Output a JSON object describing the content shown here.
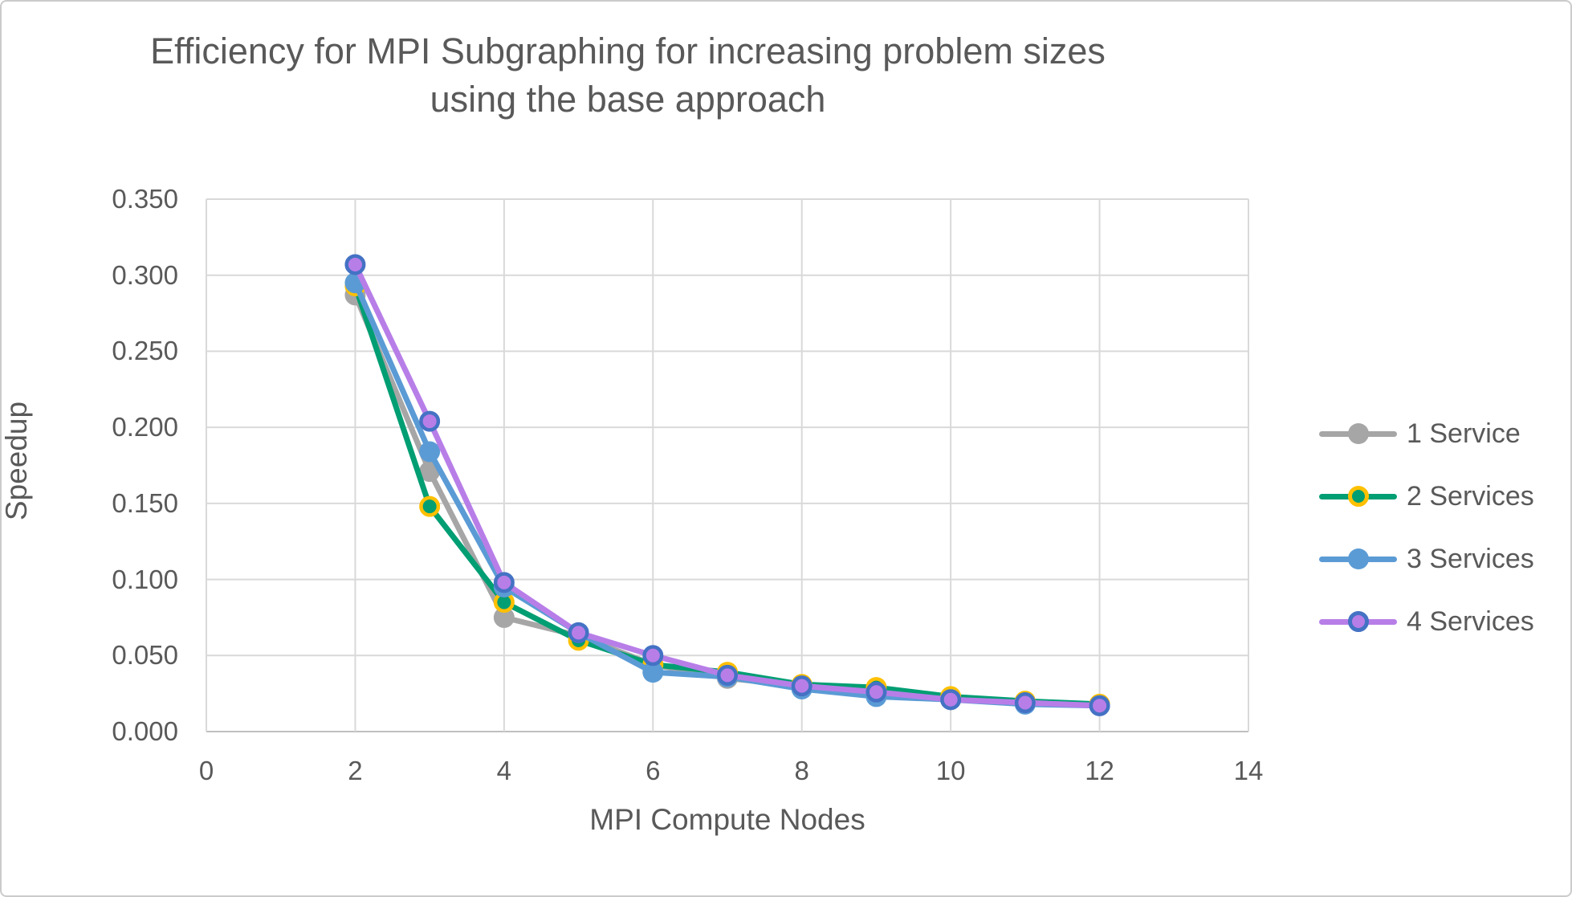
{
  "chart": {
    "title_line1": "Efficiency for MPI Subgraphing for increasing problem sizes",
    "title_line2": "using the base approach"
  },
  "colors": {
    "text": "#595959",
    "gridline": "#d9d9d9",
    "axis_line": "#bfbfbf",
    "background": "#ffffff",
    "frame_border": "#cbcbcb"
  },
  "chart_data": {
    "type": "line",
    "title": "Efficiency for MPI Subgraphing for increasing problem sizes using the base approach",
    "xlabel": "MPI Compute Nodes",
    "ylabel": "Speedup",
    "x": [
      2,
      3,
      4,
      5,
      6,
      7,
      8,
      9,
      10,
      11,
      12
    ],
    "xlim": [
      0,
      14
    ],
    "ylim": [
      0,
      0.35
    ],
    "x_tick_labels": [
      "0",
      "2",
      "4",
      "6",
      "8",
      "10",
      "12",
      "14"
    ],
    "y_tick_labels": [
      "0.000",
      "0.050",
      "0.100",
      "0.150",
      "0.200",
      "0.250",
      "0.300",
      "0.350"
    ],
    "grid": true,
    "legend_position": "right",
    "series": [
      {
        "name": "1 Service",
        "line_color": "#a6a6a6",
        "marker_fill": "#a6a6a6",
        "marker_stroke": "#a6a6a6",
        "values": [
          0.287,
          0.171,
          0.075,
          0.063,
          0.044,
          0.035,
          0.03,
          0.027,
          0.021,
          0.019,
          0.017
        ]
      },
      {
        "name": "2 Services",
        "line_color": "#009e73",
        "marker_fill": "#009e73",
        "marker_stroke": "#ffc000",
        "values": [
          0.293,
          0.148,
          0.085,
          0.06,
          0.044,
          0.039,
          0.031,
          0.029,
          0.023,
          0.02,
          0.018
        ]
      },
      {
        "name": "3 Services",
        "line_color": "#5b9bd5",
        "marker_fill": "#5b9bd5",
        "marker_stroke": "#5b9bd5",
        "values": [
          0.295,
          0.184,
          0.095,
          0.065,
          0.039,
          0.036,
          0.028,
          0.023,
          0.021,
          0.018,
          0.017
        ]
      },
      {
        "name": "4 Services",
        "line_color": "#b87ee8",
        "marker_fill": "#b87ee8",
        "marker_stroke": "#4472c4",
        "values": [
          0.307,
          0.204,
          0.098,
          0.065,
          0.05,
          0.037,
          0.03,
          0.026,
          0.021,
          0.019,
          0.017
        ]
      }
    ]
  }
}
